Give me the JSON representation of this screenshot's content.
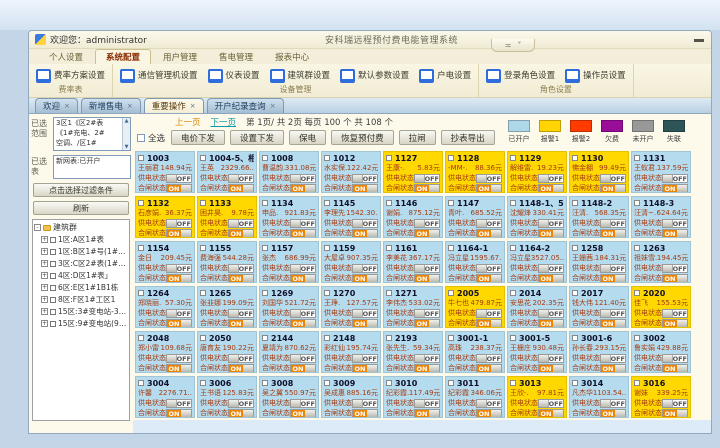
{
  "window": {
    "titlebar": {
      "welcome": "欢迎您：administrator",
      "app_title": "安科瑞远程预付费电能管理系统"
    },
    "ribbon": {
      "tabs": [
        {
          "label": "个人设置",
          "active": false
        },
        {
          "label": "系统配置",
          "active": true
        },
        {
          "label": "用户管理",
          "active": false
        },
        {
          "label": "售电管理",
          "active": false
        },
        {
          "label": "报表中心",
          "active": false
        }
      ],
      "groups": [
        {
          "label": "费率表",
          "buttons": [
            "费率方案设置"
          ]
        },
        {
          "label": "设备管理",
          "buttons": [
            "通信管理机设置",
            "仪表设置",
            "建筑群设置",
            "默认参数设置",
            "户电设置"
          ]
        },
        {
          "label": "角色设置",
          "buttons": [
            "登录角色设置",
            "操作员设置"
          ]
        }
      ]
    },
    "doc_tabs": [
      {
        "label": "欢迎",
        "active": false
      },
      {
        "label": "新增售电",
        "active": false
      },
      {
        "label": "重要操作",
        "active": true
      },
      {
        "label": "开户纪录查询",
        "active": false
      }
    ]
  },
  "sidebar": {
    "range_label": "已选\n范围",
    "range_lines": [
      "3区1《区2#表",
      "《1#充电、2#",
      "空调、/区1#"
    ],
    "table_label": "已选\n表",
    "table_lines": [
      "新网表:已开户"
    ],
    "filter_button": "点击选择过滤条件",
    "refresh_button": "刷新",
    "tree": {
      "root": "建筑群",
      "items": [
        "1区:A区1#表",
        "1区:B区1#号(1#全电",
        "3区:C区2#表(1#充电",
        "4区:D区1#表」",
        "6区:E区1#1B1栋",
        "8区:F区1#工区1",
        "15区:3#变电站-3#支",
        "15区:9#变电站(9#变"
      ]
    }
  },
  "toolbar": {
    "pagination": {
      "prev": "上一页",
      "next": "下一页",
      "info": "第  1页/ 共  2页  每页  100 个  共   108 个"
    },
    "select_all": "全选",
    "buttons": [
      "电价下发",
      "设置下发",
      "保电",
      "恢复预付费",
      "拉闸",
      "抄表导出"
    ]
  },
  "legend": [
    {
      "label": "已开户",
      "color": "#aed7e8"
    },
    {
      "label": "报警1",
      "color": "#ffd400"
    },
    {
      "label": "报警2",
      "color": "#ff3b00"
    },
    {
      "label": "欠费",
      "color": "#990d99"
    },
    {
      "label": "未开户",
      "color": "#989898"
    },
    {
      "label": "失联",
      "color": "#2d5456"
    }
  ],
  "grid": {
    "supply_label": "供电状态",
    "switch_label": "合闸状态",
    "off_label": "OFF",
    "on_label": "ON",
    "state_colors": {
      "blue": "#b5dcee",
      "yellow": "#ffd800"
    },
    "cards": [
      {
        "room": "1003",
        "name": "王丽君",
        "balance": "148.94元",
        "state": "blue"
      },
      {
        "room": "1004-5、相一",
        "name": "王英",
        "balance": "2329.66..",
        "state": "blue"
      },
      {
        "room": "1008",
        "name": "曹温韵.",
        "balance": "331.08元",
        "state": "blue"
      },
      {
        "room": "1012",
        "name": "水实保.",
        "balance": "122.42元",
        "state": "blue"
      },
      {
        "room": "1127",
        "name": "王康-.",
        "balance": "5.83元",
        "state": "yellow"
      },
      {
        "room": "1128",
        "name": "-MM-.",
        "balance": "88.36元",
        "state": "yellow"
      },
      {
        "room": "1129",
        "name": "解维雷.",
        "balance": "19.23元",
        "state": "yellow"
      },
      {
        "room": "1130",
        "name": "佛金棚",
        "balance": "99.49元",
        "state": "yellow"
      },
      {
        "room": "1131",
        "name": "王蚁君.",
        "balance": "137.59元",
        "state": "blue"
      },
      {
        "room": "1132",
        "name": "石彦娟.",
        "balance": "36.37元",
        "state": "yellow"
      },
      {
        "room": "1133",
        "name": "困井昊.",
        "balance": "9.78元",
        "state": "yellow"
      },
      {
        "room": "1134",
        "name": "申品.",
        "balance": "921.83元",
        "state": "blue"
      },
      {
        "room": "1145",
        "name": "李理先.",
        "balance": "1542.30..",
        "state": "blue"
      },
      {
        "room": "1146",
        "name": "谢娟.",
        "balance": "875.12元",
        "state": "blue"
      },
      {
        "room": "1147",
        "name": "青叶.",
        "balance": "685.52元",
        "state": "blue"
      },
      {
        "room": "1148-1、522",
        "name": "沈耀烽",
        "balance": "330.41元",
        "state": "blue"
      },
      {
        "room": "1148-2",
        "name": "汪清.",
        "balance": "568.35元",
        "state": "blue"
      },
      {
        "room": "1148-3",
        "name": "汪清~.",
        "balance": "624.64元",
        "state": "blue"
      },
      {
        "room": "1154",
        "name": "金日",
        "balance": "209.45元",
        "state": "blue"
      },
      {
        "room": "1155",
        "name": "费海强",
        "balance": "544.28元",
        "state": "blue"
      },
      {
        "room": "1157",
        "name": "张杰",
        "balance": "686.99元",
        "state": "blue"
      },
      {
        "room": "1159",
        "name": "大屋卓",
        "balance": "907.35元",
        "state": "blue"
      },
      {
        "room": "1161",
        "name": "李美花",
        "balance": "367.17元",
        "state": "blue"
      },
      {
        "room": "1164-1",
        "name": "冯立星.",
        "balance": "1595.67..",
        "state": "blue"
      },
      {
        "room": "1164-2",
        "name": "冯立星",
        "balance": "3527.05..",
        "state": "blue"
      },
      {
        "room": "1258",
        "name": "王姗茜.",
        "balance": "184.31元",
        "state": "blue"
      },
      {
        "room": "1263",
        "name": "祖妹雪.",
        "balance": "194.45元",
        "state": "blue"
      },
      {
        "room": "1264",
        "name": "郑晓丽.",
        "balance": "57.30元",
        "state": "blue"
      },
      {
        "room": "1265",
        "name": "张韭娜",
        "balance": "199.09元",
        "state": "blue"
      },
      {
        "room": "1269",
        "name": "刘国华",
        "balance": "521.72元",
        "state": "blue"
      },
      {
        "room": "1270",
        "name": "王琤.",
        "balance": "127.57元",
        "state": "blue"
      },
      {
        "room": "1271",
        "name": "李伟杰",
        "balance": "533.02元",
        "state": "blue"
      },
      {
        "room": "2005",
        "name": "牛七也",
        "balance": "479.87元",
        "state": "yellow"
      },
      {
        "room": "2014",
        "name": "安思花",
        "balance": "202.35元",
        "state": "blue"
      },
      {
        "room": "2017",
        "name": "钱大伟",
        "balance": "121.40元",
        "state": "blue"
      },
      {
        "room": "2020",
        "name": "佳飞",
        "balance": "155.53元",
        "state": "yellow"
      },
      {
        "room": "2048",
        "name": "郑小雷",
        "balance": "109.68元",
        "state": "blue"
      },
      {
        "room": "2050",
        "name": "唐育友",
        "balance": "190.22元",
        "state": "blue"
      },
      {
        "room": "2144",
        "name": "夏靖为",
        "balance": "870.62元",
        "state": "blue"
      },
      {
        "room": "2148",
        "name": "彩红仙",
        "balance": "195.74元",
        "state": "blue"
      },
      {
        "room": "2193",
        "name": "张先生.",
        "balance": "59.34元",
        "state": "blue"
      },
      {
        "room": "3001-1",
        "name": "高珠",
        "balance": "238.37元",
        "state": "blue"
      },
      {
        "room": "3001-5",
        "name": "王栅庄",
        "balance": "930.48元",
        "state": "blue"
      },
      {
        "room": "3001-6",
        "name": "孙长春.",
        "balance": "293.15元",
        "state": "blue"
      },
      {
        "room": "3002",
        "name": "鲁实娟",
        "balance": "429.88元",
        "state": "blue"
      },
      {
        "room": "3004",
        "name": "许馨",
        "balance": "2276.71..",
        "state": "blue"
      },
      {
        "room": "3006",
        "name": "王书语",
        "balance": "125.83元",
        "state": "blue"
      },
      {
        "room": "3008",
        "name": "吴之翼",
        "balance": "550.97元",
        "state": "blue"
      },
      {
        "room": "3009",
        "name": "吴成惠",
        "balance": "885.16元",
        "state": "blue"
      },
      {
        "room": "3010",
        "name": "纪彩霞.",
        "balance": "117.49元",
        "state": "blue"
      },
      {
        "room": "3011",
        "name": "纪彩霞",
        "balance": "346.06元",
        "state": "blue"
      },
      {
        "room": "3013",
        "name": "王欣-.",
        "balance": "97.81元",
        "state": "yellow"
      },
      {
        "room": "3014",
        "name": "凡杰华",
        "balance": "1103.54..",
        "state": "blue"
      },
      {
        "room": "3016",
        "name": "谢妹",
        "balance": "339.25元",
        "state": "yellow"
      }
    ]
  }
}
